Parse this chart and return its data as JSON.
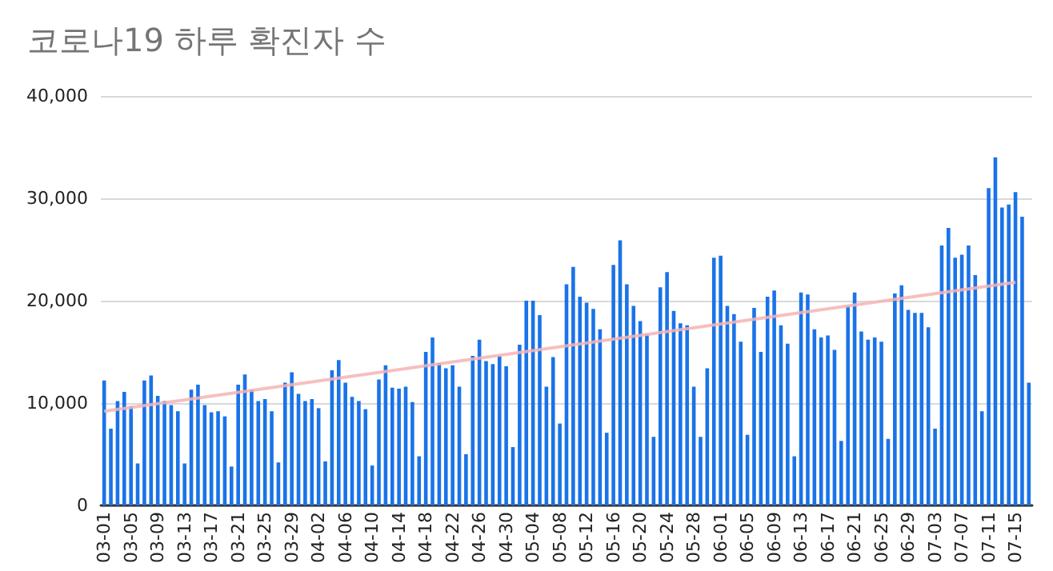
{
  "chart_data": {
    "type": "bar",
    "title": "코로나19 하루 확진자 수",
    "categories": [
      "03-01",
      null,
      null,
      null,
      "03-05",
      null,
      null,
      null,
      "03-09",
      null,
      null,
      null,
      "03-13",
      null,
      null,
      null,
      "03-17",
      null,
      null,
      null,
      "03-21",
      null,
      null,
      null,
      "03-25",
      null,
      null,
      null,
      "03-29",
      null,
      null,
      null,
      "04-02",
      null,
      null,
      null,
      "04-06",
      null,
      null,
      null,
      "04-10",
      null,
      null,
      null,
      "04-14",
      null,
      null,
      null,
      "04-18",
      null,
      null,
      null,
      "04-22",
      null,
      null,
      null,
      "04-26",
      null,
      null,
      null,
      "04-30",
      null,
      null,
      null,
      "05-04",
      null,
      null,
      null,
      "05-08",
      null,
      null,
      null,
      "05-12",
      null,
      null,
      null,
      "05-16",
      null,
      null,
      null,
      "05-20",
      null,
      null,
      null,
      "05-24",
      null,
      null,
      null,
      "05-28",
      null,
      null,
      null,
      "06-01",
      null,
      null,
      null,
      "06-05",
      null,
      null,
      null,
      "06-09",
      null,
      null,
      null,
      "06-13",
      null,
      null,
      null,
      "06-17",
      null,
      null,
      null,
      "06-21",
      null,
      null,
      null,
      "06-25",
      null,
      null,
      null,
      "06-29",
      null,
      null,
      null,
      "07-03",
      null,
      null,
      null,
      "07-07",
      null,
      null,
      null,
      "07-11",
      null,
      null,
      null,
      "07-15",
      null,
      null
    ],
    "series": [
      {
        "color": "#1a73e8",
        "values": [
          12200,
          7500,
          10200,
          11100,
          9700,
          4100,
          12200,
          12700,
          10700,
          10200,
          9800,
          9200,
          4100,
          11300,
          11800,
          9800,
          9100,
          9200,
          8700,
          3800,
          11800,
          12800,
          11300,
          10200,
          10400,
          9200,
          4200,
          12000,
          13000,
          10900,
          10200,
          10400,
          9500,
          4300,
          13200,
          14200,
          12000,
          10600,
          10200,
          9400,
          3900,
          12300,
          13700,
          11500,
          11400,
          11600,
          10100,
          4800,
          15000,
          16400,
          13900,
          13400,
          13700,
          11600,
          5000,
          14600,
          16200,
          14100,
          13800,
          14600,
          13600,
          5700,
          15700,
          20000,
          20000,
          18600,
          11600,
          14500,
          8000,
          21600,
          23300,
          20400,
          19800,
          19200,
          17200,
          7100,
          23500,
          25900,
          21600,
          19500,
          18000,
          16700,
          6700,
          21300,
          22800,
          19000,
          17800,
          17600,
          11600,
          6700,
          13400,
          24200,
          24400,
          19500,
          18700,
          16000,
          6900,
          19300,
          15000,
          20400,
          21000,
          17600,
          15800,
          4800,
          20800,
          20600,
          17200,
          16400,
          16600,
          15200,
          6300,
          19500,
          20800,
          17000,
          16200,
          16400,
          16000,
          6500,
          20700,
          21500,
          19100,
          18800,
          18800,
          17400,
          7500,
          25400,
          27100,
          24200,
          24500,
          25400,
          22500,
          9200,
          31000,
          34000,
          29100,
          29400,
          30600,
          28200,
          12000
        ]
      },
      {
        "type": "line",
        "color": "#f4b4b4",
        "x": [
          "03-01",
          "07-15"
        ],
        "values": [
          9200,
          21800
        ]
      }
    ],
    "ylim": [
      0,
      40000
    ],
    "yticks": [
      0,
      {
        "value": 10000,
        "label": "10,000"
      },
      {
        "value": 20000,
        "label": "20,000"
      },
      {
        "value": 30000,
        "label": "30,000"
      },
      {
        "value": 40000,
        "label": "40,000"
      }
    ],
    "grid": "y"
  }
}
